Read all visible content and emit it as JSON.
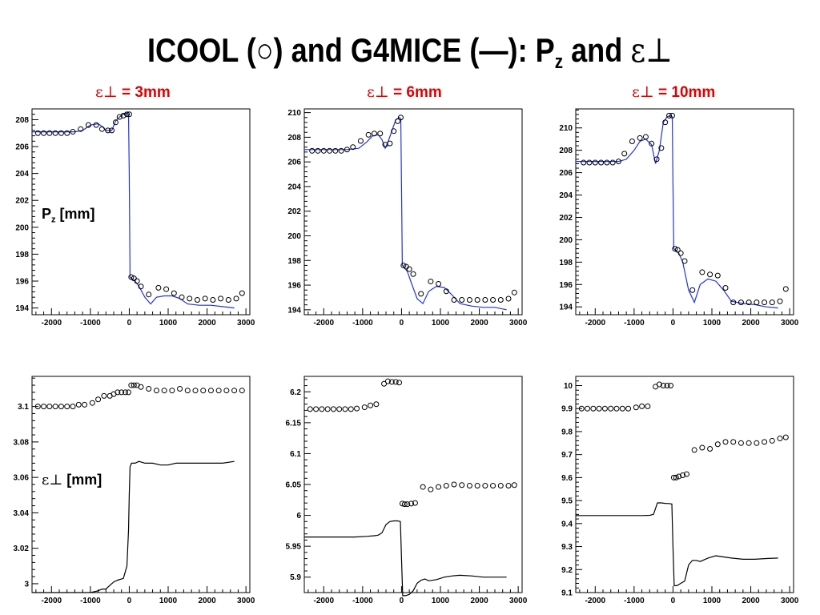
{
  "slide": {
    "title_main": "ICOOL (",
    "title_circle": "○",
    "title_mid": ") and G4MICE (",
    "title_dash": "—",
    "title_after": "): P",
    "title_sub": "z",
    "title_tail": " and ",
    "title_eps": "ε⊥",
    "columns": [
      {
        "eps": "ε⊥",
        "eq": " = 3mm"
      },
      {
        "eps": "ε⊥",
        "eq": " = 6mm"
      },
      {
        "eps": "ε⊥",
        "eq": " = 10mm"
      }
    ],
    "pz_label": "P",
    "pz_label_sub": "z",
    "pz_label_unit": " [mm]",
    "eps_label": "ε⊥",
    "eps_label_unit": " [mm]"
  },
  "colors": {
    "g4mice_top": "#2233dd",
    "g4mice_bottom": "#000000",
    "icool_marker": "#000000",
    "column_label": "#e00000"
  },
  "chart_data": [
    {
      "id": "pz-3mm",
      "type": "line",
      "xlim": [
        -2500,
        3100
      ],
      "ylim": [
        193.5,
        208.8
      ],
      "xticks": [
        -2000,
        -1000,
        0,
        1000,
        2000,
        3000
      ],
      "yticks": [
        194,
        196,
        198,
        200,
        202,
        204,
        206,
        208
      ],
      "ylabel": "P_z [mm]",
      "series": [
        {
          "name": "G4MICE",
          "style": "line",
          "color": "#2233dd",
          "x": [
            -2500,
            -1800,
            -1400,
            -1200,
            -1000,
            -800,
            -700,
            -600,
            -450,
            -350,
            -250,
            -150,
            -60,
            -20,
            0,
            20,
            60,
            150,
            250,
            400,
            550,
            700,
            900,
            1100,
            1300,
            1500,
            1800,
            2100,
            2400,
            2700
          ],
          "y": [
            207.1,
            207.1,
            207.1,
            207.2,
            207.6,
            207.7,
            207.5,
            207.2,
            207.2,
            207.9,
            208.2,
            208.4,
            208.5,
            208.4,
            204,
            196.3,
            196.2,
            196.0,
            195.6,
            194.8,
            194.3,
            194.8,
            194.9,
            194.9,
            194.7,
            194.3,
            194.2,
            194.2,
            194.1,
            194.0
          ]
        },
        {
          "name": "ICOOL",
          "style": "marker",
          "x": [
            -2350,
            -2200,
            -2050,
            -1900,
            -1750,
            -1600,
            -1450,
            -1250,
            -1050,
            -850,
            -700,
            -550,
            -450,
            -350,
            -250,
            -150,
            -60,
            0,
            50,
            120,
            200,
            300,
            500,
            750,
            950,
            1150,
            1350,
            1550,
            1750,
            1950,
            2150,
            2350,
            2550,
            2750,
            2900
          ],
          "y": [
            207.0,
            207.0,
            207.0,
            207.0,
            207.0,
            207.0,
            207.1,
            207.3,
            207.6,
            207.6,
            207.3,
            207.2,
            207.2,
            207.8,
            208.2,
            208.3,
            208.4,
            208.4,
            196.3,
            196.2,
            196.0,
            195.6,
            195.0,
            195.5,
            195.4,
            195.1,
            194.8,
            194.7,
            194.6,
            194.7,
            194.6,
            194.7,
            194.6,
            194.7,
            195.1
          ]
        }
      ]
    },
    {
      "id": "pz-6mm",
      "type": "line",
      "xlim": [
        -2500,
        3100
      ],
      "ylim": [
        193.6,
        210.3
      ],
      "xticks": [
        -2000,
        -1000,
        0,
        1000,
        2000,
        3000
      ],
      "yticks": [
        194,
        196,
        198,
        200,
        202,
        204,
        206,
        208,
        210
      ],
      "series": [
        {
          "name": "G4MICE",
          "style": "line",
          "color": "#2233dd",
          "x": [
            -2500,
            -1800,
            -1400,
            -1100,
            -900,
            -750,
            -600,
            -500,
            -420,
            -350,
            -250,
            -150,
            -60,
            -20,
            0,
            20,
            60,
            150,
            250,
            400,
            550,
            700,
            900,
            1100,
            1300,
            1500,
            1800,
            2100,
            2400,
            2700
          ],
          "y": [
            207.0,
            207.0,
            207.0,
            207.1,
            207.6,
            208.1,
            208.2,
            207.8,
            207.1,
            207.6,
            208.5,
            209.4,
            209.6,
            209.5,
            204,
            197.6,
            197.5,
            197.1,
            196.2,
            194.9,
            194.5,
            195.5,
            195.9,
            195.8,
            195.2,
            194.5,
            194.3,
            194.2,
            194.2,
            194.0
          ]
        },
        {
          "name": "ICOOL",
          "style": "marker",
          "x": [
            -2300,
            -2150,
            -2000,
            -1850,
            -1700,
            -1550,
            -1400,
            -1250,
            -1050,
            -850,
            -700,
            -550,
            -420,
            -300,
            -200,
            -100,
            -20,
            50,
            120,
            200,
            300,
            500,
            750,
            950,
            1150,
            1350,
            1550,
            1750,
            1950,
            2150,
            2350,
            2550,
            2750,
            2900
          ],
          "y": [
            206.9,
            206.9,
            206.9,
            206.9,
            206.9,
            206.9,
            207.0,
            207.2,
            207.7,
            208.2,
            208.3,
            208.3,
            207.4,
            207.5,
            208.5,
            209.3,
            209.6,
            197.6,
            197.5,
            197.3,
            196.9,
            195.3,
            196.3,
            196.1,
            195.5,
            194.8,
            194.8,
            194.8,
            194.8,
            194.8,
            194.8,
            194.8,
            194.9,
            195.4
          ]
        }
      ]
    },
    {
      "id": "pz-10mm",
      "type": "line",
      "xlim": [
        -2500,
        3100
      ],
      "ylim": [
        193.3,
        211.7
      ],
      "xticks": [
        -2000,
        -1000,
        0,
        1000,
        2000,
        3000
      ],
      "yticks": [
        194,
        196,
        198,
        200,
        202,
        204,
        206,
        208,
        210
      ],
      "series": [
        {
          "name": "G4MICE",
          "style": "line",
          "color": "#2233dd",
          "x": [
            -2500,
            -1800,
            -1400,
            -1200,
            -1000,
            -850,
            -700,
            -550,
            -450,
            -350,
            -250,
            -150,
            -60,
            -20,
            0,
            20,
            60,
            150,
            250,
            400,
            550,
            700,
            900,
            1100,
            1300,
            1500,
            1800,
            2100,
            2400,
            2700
          ],
          "y": [
            207.0,
            207.0,
            207.0,
            207.2,
            208.0,
            208.8,
            209.0,
            208.5,
            206.8,
            208.0,
            210.5,
            211.0,
            211.1,
            211.0,
            205,
            199.2,
            199.1,
            198.8,
            198.0,
            195.5,
            194.4,
            196.0,
            196.5,
            196.3,
            195.5,
            194.5,
            194.3,
            194.2,
            194.0,
            193.9
          ]
        },
        {
          "name": "ICOOL",
          "style": "marker",
          "x": [
            -2300,
            -2150,
            -2000,
            -1850,
            -1700,
            -1550,
            -1400,
            -1250,
            -1050,
            -850,
            -700,
            -550,
            -420,
            -300,
            -200,
            -100,
            -20,
            50,
            120,
            200,
            300,
            500,
            750,
            950,
            1150,
            1350,
            1550,
            1750,
            1950,
            2150,
            2350,
            2550,
            2750,
            2900
          ],
          "y": [
            206.9,
            206.9,
            206.9,
            206.9,
            206.9,
            206.9,
            207.0,
            207.7,
            208.8,
            209.1,
            209.2,
            208.6,
            207.2,
            208.2,
            210.5,
            211.1,
            211.1,
            199.2,
            199.1,
            198.8,
            198.1,
            195.5,
            197.1,
            196.9,
            196.8,
            195.7,
            194.4,
            194.4,
            194.4,
            194.4,
            194.4,
            194.4,
            194.5,
            195.6
          ]
        }
      ]
    },
    {
      "id": "eps-3mm",
      "type": "line",
      "xlim": [
        -2500,
        3100
      ],
      "ylim": [
        2.995,
        3.117
      ],
      "xticks": [
        -2000,
        -1000,
        0,
        1000,
        2000,
        3000
      ],
      "yticks": [
        3,
        3.02,
        3.04,
        3.06,
        3.08,
        3.1
      ],
      "ytick_labels": [
        "3",
        "3.02",
        "3.04",
        "3.06",
        "3.08",
        "3.1"
      ],
      "ylabel": "ε⊥ [mm]",
      "series": [
        {
          "name": "G4MICE",
          "style": "line",
          "color": "#000000",
          "x": [
            -2500,
            -2000,
            -1500,
            -1200,
            -1000,
            -800,
            -700,
            -600,
            -500,
            -400,
            -300,
            -150,
            -60,
            -20,
            0,
            20,
            60,
            150,
            250,
            400,
            600,
            800,
            1000,
            1200,
            1500,
            1800,
            2100,
            2400,
            2700
          ],
          "y": [
            2.995,
            2.995,
            2.995,
            2.995,
            2.995,
            2.996,
            2.997,
            2.997,
            2.999,
            3.001,
            3.002,
            3.003,
            3.01,
            3.03,
            3.05,
            3.066,
            3.068,
            3.068,
            3.069,
            3.068,
            3.068,
            3.067,
            3.067,
            3.068,
            3.068,
            3.068,
            3.068,
            3.068,
            3.069
          ]
        },
        {
          "name": "ICOOL",
          "style": "marker",
          "x": [
            -2350,
            -2200,
            -2050,
            -1900,
            -1750,
            -1600,
            -1450,
            -1300,
            -1150,
            -950,
            -800,
            -650,
            -500,
            -400,
            -300,
            -200,
            -100,
            -20,
            50,
            120,
            200,
            300,
            500,
            700,
            900,
            1100,
            1300,
            1500,
            1700,
            1900,
            2100,
            2300,
            2500,
            2700,
            2900
          ],
          "y": [
            3.1,
            3.1,
            3.1,
            3.1,
            3.1,
            3.1,
            3.1,
            3.101,
            3.101,
            3.102,
            3.104,
            3.106,
            3.106,
            3.107,
            3.108,
            3.108,
            3.108,
            3.108,
            3.112,
            3.112,
            3.112,
            3.111,
            3.11,
            3.109,
            3.109,
            3.109,
            3.11,
            3.109,
            3.109,
            3.109,
            3.109,
            3.109,
            3.109,
            3.109,
            3.109
          ]
        }
      ]
    },
    {
      "id": "eps-6mm",
      "type": "line",
      "xlim": [
        -2500,
        3100
      ],
      "ylim": [
        5.875,
        6.225
      ],
      "xticks": [
        -2000,
        -1000,
        0,
        1000,
        2000,
        3000
      ],
      "yticks": [
        5.9,
        5.95,
        6,
        6.05,
        6.1,
        6.15,
        6.2
      ],
      "ytick_labels": [
        "5.9",
        "5.95",
        "6",
        "6.05",
        "6.1",
        "6.15",
        "6.2"
      ],
      "series": [
        {
          "name": "G4MICE",
          "style": "line",
          "color": "#000000",
          "x": [
            -2500,
            -1800,
            -1200,
            -900,
            -700,
            -600,
            -500,
            -400,
            -300,
            -200,
            -100,
            -30,
            0,
            30,
            100,
            200,
            300,
            400,
            500,
            600,
            700,
            900,
            1100,
            1300,
            1500,
            1800,
            2100,
            2400,
            2700
          ],
          "y": [
            5.965,
            5.965,
            5.965,
            5.966,
            5.967,
            5.968,
            5.972,
            5.985,
            5.99,
            5.991,
            5.991,
            5.99,
            5.93,
            5.87,
            5.87,
            5.872,
            5.878,
            5.89,
            5.895,
            5.897,
            5.894,
            5.896,
            5.9,
            5.902,
            5.903,
            5.902,
            5.9,
            5.9,
            5.9
          ]
        },
        {
          "name": "ICOOL",
          "style": "marker",
          "x": [
            -2350,
            -2200,
            -2050,
            -1900,
            -1750,
            -1600,
            -1450,
            -1300,
            -1150,
            -950,
            -800,
            -650,
            -450,
            -350,
            -250,
            -150,
            -60,
            20,
            80,
            150,
            250,
            350,
            550,
            750,
            950,
            1150,
            1350,
            1550,
            1750,
            1950,
            2150,
            2350,
            2550,
            2750,
            2900
          ],
          "y": [
            6.172,
            6.172,
            6.172,
            6.172,
            6.172,
            6.172,
            6.172,
            6.172,
            6.173,
            6.175,
            6.178,
            6.18,
            6.213,
            6.217,
            6.216,
            6.216,
            6.215,
            6.019,
            6.018,
            6.018,
            6.019,
            6.02,
            6.046,
            6.042,
            6.046,
            6.048,
            6.05,
            6.049,
            6.048,
            6.048,
            6.048,
            6.048,
            6.048,
            6.048,
            6.049
          ]
        }
      ]
    },
    {
      "id": "eps-10mm",
      "type": "line",
      "xlim": [
        -2500,
        3100
      ],
      "ylim": [
        9.1,
        10.04
      ],
      "xticks": [
        -2000,
        -1000,
        0,
        1000,
        2000,
        3000
      ],
      "yticks": [
        9.1,
        9.2,
        9.3,
        9.4,
        9.5,
        9.6,
        9.7,
        9.8,
        9.9,
        10
      ],
      "ytick_labels": [
        "9.1",
        "9.2",
        "9.3",
        "9.4",
        "9.5",
        "9.6",
        "9.7",
        "9.8",
        "9.9",
        "10"
      ],
      "series": [
        {
          "name": "G4MICE",
          "style": "line",
          "color": "#000000",
          "x": [
            -2500,
            -1800,
            -1200,
            -800,
            -600,
            -500,
            -400,
            -300,
            -200,
            -100,
            -30,
            0,
            30,
            100,
            200,
            300,
            400,
            500,
            600,
            700,
            900,
            1100,
            1300,
            1500,
            1800,
            2100,
            2400,
            2700
          ],
          "y": [
            9.435,
            9.435,
            9.435,
            9.435,
            9.436,
            9.44,
            9.49,
            9.49,
            9.488,
            9.487,
            9.485,
            9.3,
            9.13,
            9.13,
            9.14,
            9.15,
            9.22,
            9.24,
            9.24,
            9.235,
            9.25,
            9.26,
            9.255,
            9.25,
            9.245,
            9.245,
            9.248,
            9.25
          ]
        },
        {
          "name": "ICOOL",
          "style": "marker",
          "x": [
            -2350,
            -2200,
            -2050,
            -1900,
            -1750,
            -1600,
            -1450,
            -1300,
            -1150,
            -950,
            -800,
            -650,
            -450,
            -350,
            -250,
            -150,
            -60,
            20,
            80,
            150,
            250,
            350,
            550,
            750,
            950,
            1150,
            1350,
            1550,
            1750,
            1950,
            2150,
            2350,
            2550,
            2750,
            2900
          ],
          "y": [
            9.9,
            9.9,
            9.9,
            9.9,
            9.9,
            9.9,
            9.9,
            9.9,
            9.9,
            9.905,
            9.91,
            9.91,
            9.995,
            10.005,
            10.0,
            10.0,
            10.0,
            9.6,
            9.6,
            9.605,
            9.61,
            9.615,
            9.72,
            9.73,
            9.725,
            9.745,
            9.755,
            9.755,
            9.75,
            9.75,
            9.75,
            9.755,
            9.76,
            9.77,
            9.775
          ]
        }
      ]
    }
  ]
}
